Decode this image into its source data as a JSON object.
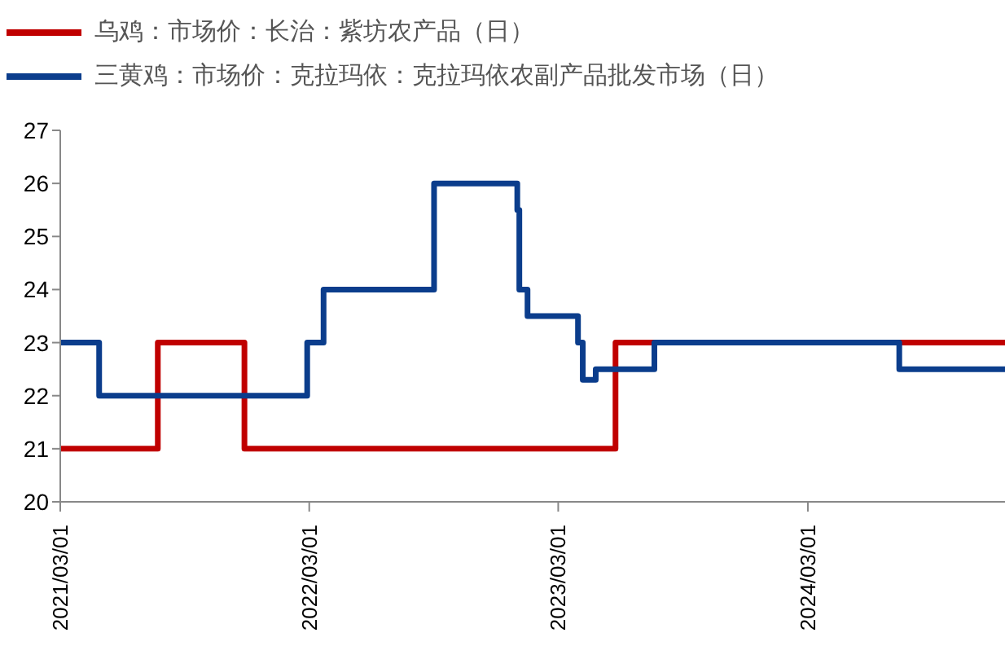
{
  "chart_data": {
    "type": "step",
    "legend": "top",
    "marker": "none",
    "line_style": "solid",
    "grid": false,
    "xlim": [
      "2021-03-01",
      "2024-12-15"
    ],
    "xticks": [
      {
        "value": "2021-03-01",
        "label": "2021/03/01"
      },
      {
        "value": "2022-03-01",
        "label": "2022/03/01"
      },
      {
        "value": "2023-03-01",
        "label": "2023/03/01"
      },
      {
        "value": "2024-03-01",
        "label": "2024/03/01"
      }
    ],
    "ylim": [
      20,
      27
    ],
    "yticks": [
      20,
      21,
      22,
      23,
      24,
      25,
      26,
      27
    ],
    "series": [
      {
        "name": "乌鸡：市场价：长治：紫坊农产品（日）",
        "color": "#c00000",
        "x": [
          "2021-03-01",
          "2021-07-22",
          "2021-11-26",
          "2023-05-24",
          "2024-12-15"
        ],
        "values": [
          21,
          23,
          21,
          23,
          23
        ]
      },
      {
        "name": "三黄鸡：市场价：克拉玛依：克拉玛依农副产品批发市场（日）",
        "color": "#0b3d8c",
        "x": [
          "2021-03-01",
          "2021-04-27",
          "2022-02-26",
          "2022-03-22",
          "2022-08-31",
          "2022-12-31",
          "2023-01-03",
          "2023-01-15",
          "2023-03-30",
          "2023-04-06",
          "2023-04-25",
          "2023-07-20",
          "2024-07-13",
          "2024-12-15"
        ],
        "values": [
          23,
          22,
          23,
          24,
          26,
          25.5,
          24,
          23.5,
          23,
          22.3,
          22.5,
          23,
          22.5,
          22.5
        ]
      }
    ]
  }
}
